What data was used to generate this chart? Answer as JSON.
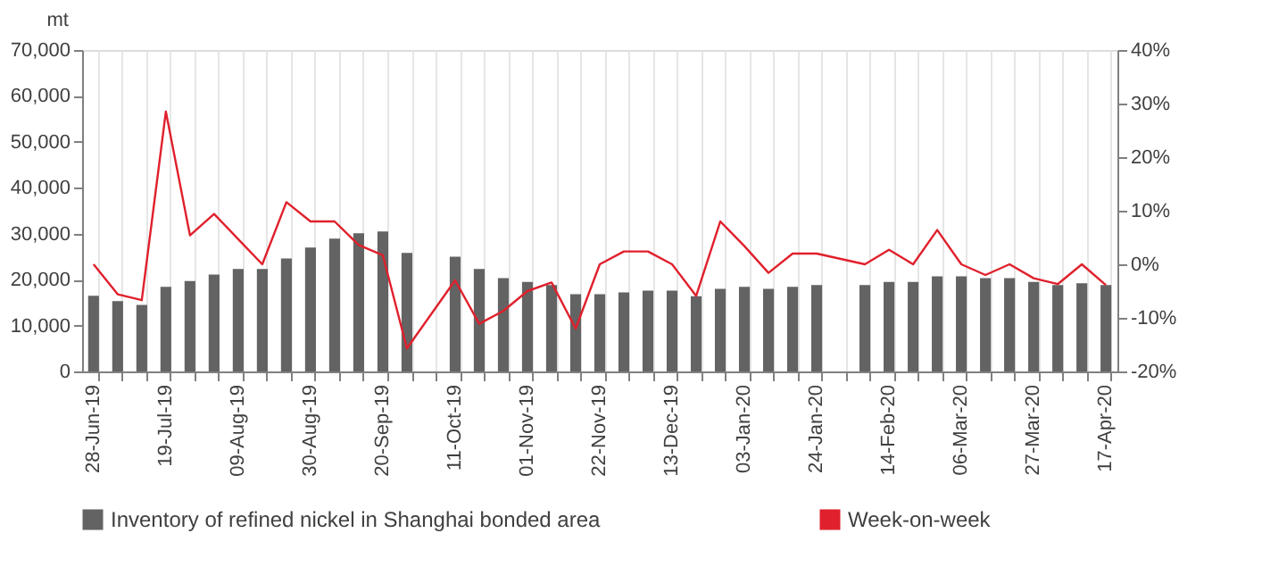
{
  "chart_data": {
    "type": "bar",
    "ylabel": "mt",
    "categories": [
      "28-Jun-19",
      null,
      null,
      "19-Jul-19",
      null,
      null,
      "09-Aug-19",
      null,
      null,
      "30-Aug-19",
      null,
      null,
      "20-Sep-19",
      null,
      null,
      "11-Oct-19",
      null,
      null,
      "01-Nov-19",
      null,
      null,
      "22-Nov-19",
      null,
      null,
      "13-Dec-19",
      null,
      null,
      "03-Jan-20",
      null,
      null,
      "24-Jan-20",
      null,
      null,
      "14-Feb-20",
      null,
      null,
      "06-Mar-20",
      null,
      null,
      "27-Mar-20",
      null,
      null,
      "17-Apr-20"
    ],
    "series": [
      {
        "name": "Inventory of refined nickel in Shanghai bonded area",
        "color": "#636363",
        "values": [
          16500,
          15300,
          14500,
          18400,
          19700,
          21100,
          22300,
          22300,
          24600,
          27000,
          28900,
          30100,
          30500,
          25800,
          null,
          25000,
          22300,
          20300,
          19500,
          18800,
          16800,
          16800,
          17200,
          17600,
          17600,
          16400,
          18000,
          18400,
          18000,
          18400,
          18800,
          null,
          18800,
          19500,
          19500,
          20700,
          20700,
          20300,
          20300,
          19500,
          18800,
          19200,
          18800
        ]
      },
      {
        "name": "Week-on-week",
        "type": "line",
        "axis": "y2",
        "color": "#e0202c",
        "values": [
          0,
          -5.6,
          -6.7,
          28.5,
          5.4,
          9.4,
          4.7,
          0,
          11.6,
          8,
          8,
          3.6,
          1.7,
          -15.7,
          null,
          -3,
          -11.1,
          -8.7,
          -5,
          -3.4,
          -12,
          0,
          2.4,
          2.4,
          0,
          -5.9,
          8,
          3.4,
          -1.6,
          2,
          2,
          null,
          0,
          2.7,
          0,
          6.4,
          0,
          -2,
          0,
          -2.6,
          -3.7,
          0,
          -3.9
        ]
      }
    ],
    "ylim": [
      0,
      70000
    ],
    "yticks": [
      {
        "value": 0,
        "label": "0"
      },
      {
        "value": 10000,
        "label": "10,000"
      },
      {
        "value": 20000,
        "label": "20,000"
      },
      {
        "value": 30000,
        "label": "30,000"
      },
      {
        "value": 40000,
        "label": "40,000"
      },
      {
        "value": 50000,
        "label": "50,000"
      },
      {
        "value": 60000,
        "label": "60,000"
      },
      {
        "value": 70000,
        "label": "70,000"
      }
    ],
    "y2lim": [
      -20,
      40
    ],
    "y2ticks": [
      {
        "value": -20,
        "label": "-20%"
      },
      {
        "value": -10,
        "label": "-10%"
      },
      {
        "value": 0,
        "label": "0%"
      },
      {
        "value": 10,
        "label": "10%"
      },
      {
        "value": 20,
        "label": "20%"
      },
      {
        "value": 30,
        "label": "30%"
      },
      {
        "value": 40,
        "label": "40%"
      }
    ],
    "grid": "x",
    "legend": "bottom",
    "marker": "none",
    "line_style": "solid"
  }
}
